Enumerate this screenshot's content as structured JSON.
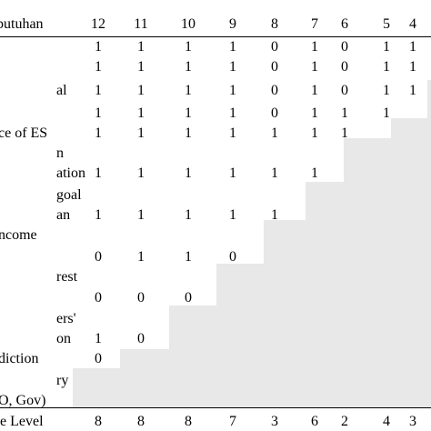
{
  "header": {
    "label": "butuhan",
    "columns": [
      "12",
      "11",
      "10",
      "9",
      "8",
      "7",
      "6",
      "5",
      "4"
    ]
  },
  "rows": [
    {
      "label": "",
      "values": [
        "1",
        "1",
        "1",
        "1",
        "0",
        "1",
        "0",
        "1",
        "1"
      ]
    },
    {
      "label": "",
      "values": [
        "1",
        "1",
        "1",
        "1",
        "0",
        "1",
        "0",
        "1",
        "1"
      ]
    },
    {
      "label": "al",
      "values": [
        "1",
        "1",
        "1",
        "1",
        "0",
        "1",
        "0",
        "1",
        "1"
      ]
    },
    {
      "label": "",
      "values": [
        "1",
        "1",
        "1",
        "1",
        "0",
        "1",
        "1",
        "1",
        ""
      ]
    },
    {
      "label": "ce of ES",
      "values": [
        "1",
        "1",
        "1",
        "1",
        "1",
        "1",
        "1",
        "",
        ""
      ]
    },
    {
      "label": "n",
      "values": [
        "",
        "",
        "",
        "",
        "",
        "",
        "",
        "",
        ""
      ]
    },
    {
      "label": "ation",
      "values": [
        "1",
        "1",
        "1",
        "1",
        "1",
        "1",
        "",
        "",
        ""
      ]
    },
    {
      "label": "goal",
      "values": [
        "",
        "",
        "",
        "",
        "",
        "",
        "",
        "",
        ""
      ]
    },
    {
      "label": "an",
      "values": [
        "1",
        "1",
        "1",
        "1",
        "1",
        "",
        "",
        "",
        ""
      ]
    },
    {
      "label": "ncome",
      "values": [
        "",
        "",
        "",
        "",
        "",
        "",
        "",
        "",
        ""
      ]
    },
    {
      "label": "",
      "values": [
        "0",
        "1",
        "1",
        "0",
        "",
        "",
        "",
        "",
        ""
      ]
    },
    {
      "label": "rest",
      "values": [
        "",
        "",
        "",
        "",
        "",
        "",
        "",
        "",
        ""
      ]
    },
    {
      "label": "",
      "values": [
        "0",
        "0",
        "0",
        "",
        "",
        "",
        "",
        "",
        ""
      ]
    },
    {
      "label": "ers'",
      "values": [
        "",
        "",
        "",
        "",
        "",
        "",
        "",
        "",
        ""
      ]
    },
    {
      "label": "on",
      "values": [
        "1",
        "0",
        "",
        "",
        "",
        "",
        "",
        "",
        ""
      ]
    },
    {
      "label": "diction",
      "values": [
        "0",
        "",
        "",
        "",
        "",
        "",
        "",
        "",
        ""
      ]
    },
    {
      "label": "ry",
      "values": [
        "",
        "",
        "",
        "",
        "",
        "",
        "",
        "",
        ""
      ]
    },
    {
      "label": "O, Gov)",
      "values": [
        "",
        "",
        "",
        "",
        "",
        "",
        "",
        "",
        ""
      ]
    }
  ],
  "footer": {
    "label": "e Level",
    "values": [
      "8",
      "8",
      "8",
      "7",
      "3",
      "6",
      "2",
      "4",
      "3"
    ]
  },
  "colors": {
    "staircase": "#e8e8e8",
    "text": "#000000",
    "background": "#ffffff"
  }
}
